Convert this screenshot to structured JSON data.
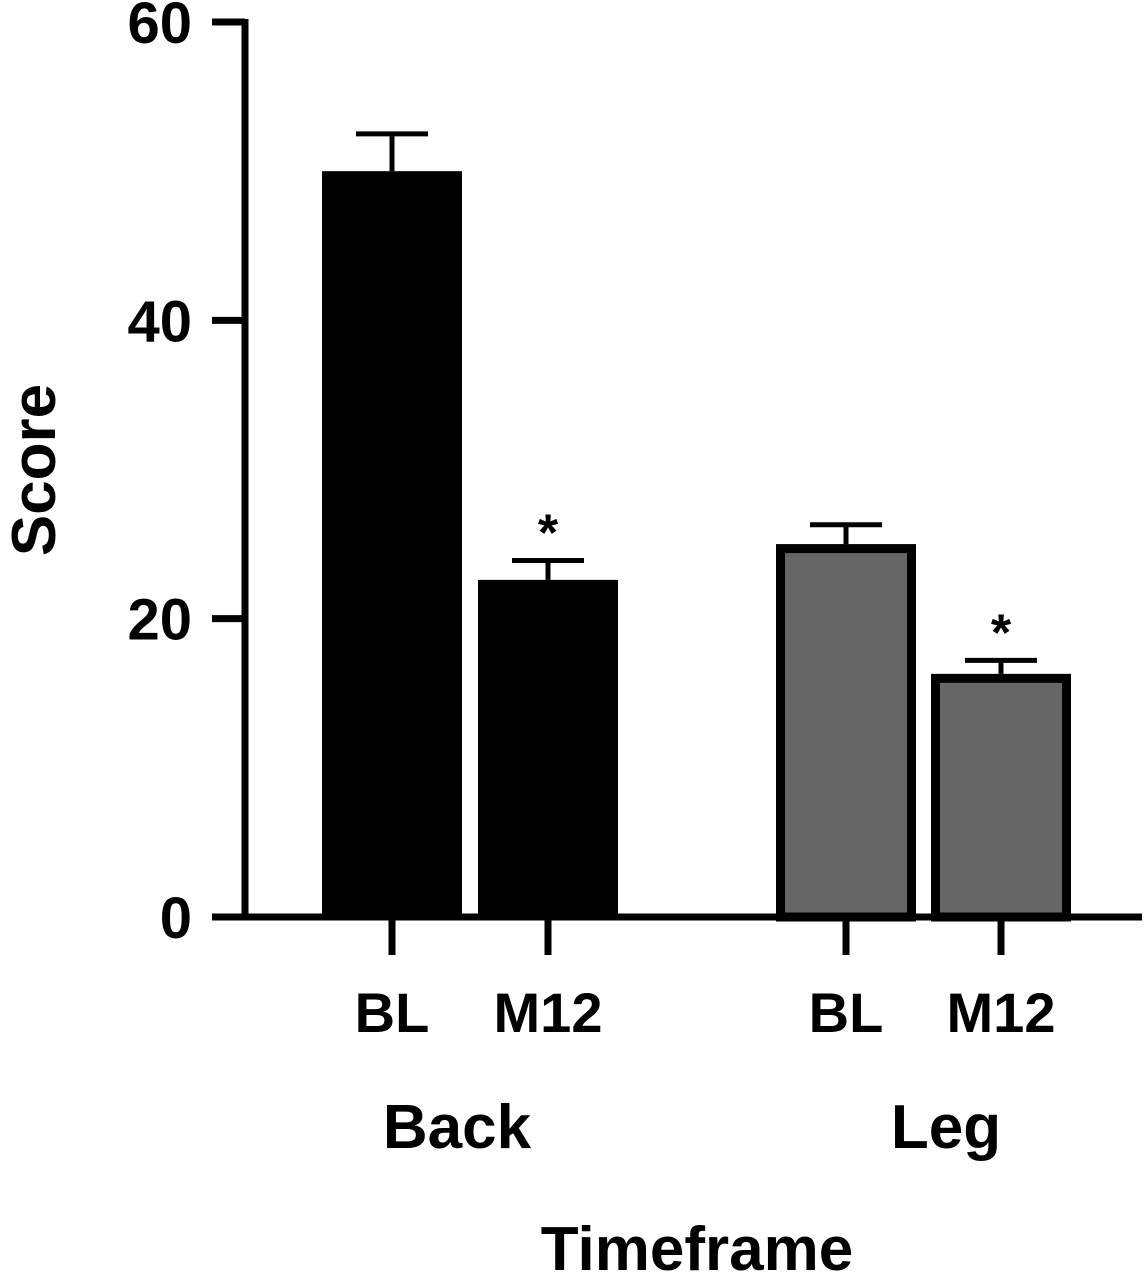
{
  "chart_data": {
    "type": "bar",
    "ylabel": "Score",
    "xlabel": "Timeframe",
    "ylim": [
      0,
      60
    ],
    "yticks": [
      0,
      20,
      40,
      60
    ],
    "grid": false,
    "groups": [
      {
        "name": "Back",
        "fill": "#000000",
        "bars": [
          {
            "category": "BL",
            "value": 50,
            "error": 2.5,
            "annotation": ""
          },
          {
            "category": "M12",
            "value": 22.6,
            "error": 1.3,
            "annotation": "*"
          }
        ]
      },
      {
        "name": "Leg",
        "fill": "#666666",
        "bars": [
          {
            "category": "BL",
            "value": 25,
            "error": 1.3,
            "annotation": ""
          },
          {
            "category": "M12",
            "value": 16.3,
            "error": 0.9,
            "annotation": "*"
          }
        ]
      }
    ]
  }
}
